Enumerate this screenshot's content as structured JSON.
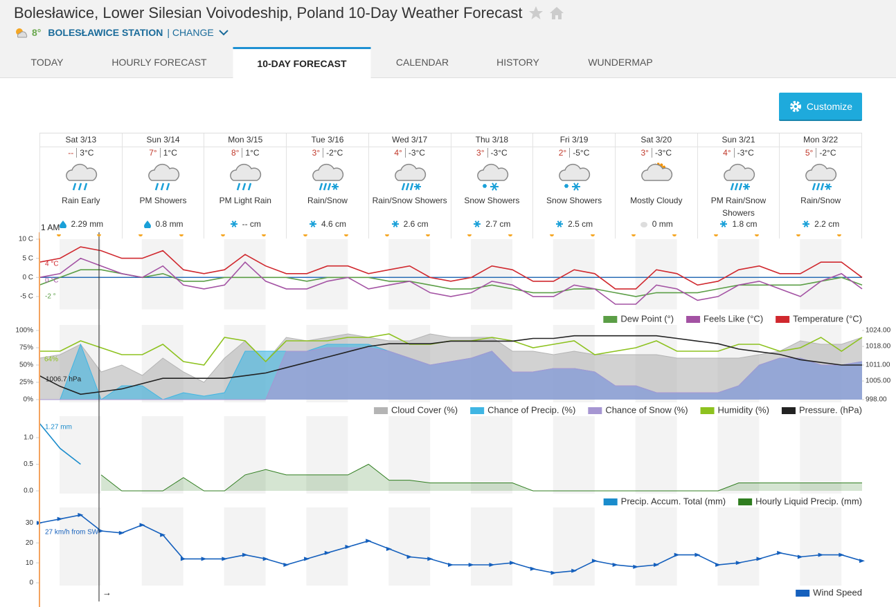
{
  "header": {
    "title": "Bolesławice, Lower Silesian Voivodeship, Poland 10-Day Weather Forecast",
    "temperature": "8°",
    "station": "BOLESŁAWICE STATION",
    "change": "| CHANGE"
  },
  "tabs": [
    "TODAY",
    "HOURLY FORECAST",
    "10-DAY FORECAST",
    "CALENDAR",
    "HISTORY",
    "WUNDERMAP"
  ],
  "active_tab": 2,
  "button": "Customize",
  "days": [
    {
      "date": "Sat 3/13",
      "high": "--",
      "low": "3°C",
      "condition": "Rain Early",
      "precip": "2.29 mm"
    },
    {
      "date": "Sun 3/14",
      "high": "7°",
      "low": "1°C",
      "condition": "PM Showers",
      "precip": "0.8 mm"
    },
    {
      "date": "Mon 3/15",
      "high": "8°",
      "low": "1°C",
      "condition": "PM Light Rain",
      "precip": "-- cm"
    },
    {
      "date": "Tue 3/16",
      "high": "3°",
      "low": "-2°C",
      "condition": "Rain/Snow",
      "precip": "4.6 cm"
    },
    {
      "date": "Wed 3/17",
      "high": "4°",
      "low": "-3°C",
      "condition": "Rain/Snow Showers",
      "precip": "2.6 cm"
    },
    {
      "date": "Thu 3/18",
      "high": "3°",
      "low": "-3°C",
      "condition": "Snow Showers",
      "precip": "2.7 cm"
    },
    {
      "date": "Fri 3/19",
      "high": "2°",
      "low": "-5°C",
      "condition": "Snow Showers",
      "precip": "2.5 cm"
    },
    {
      "date": "Sat 3/20",
      "high": "3°",
      "low": "-3°C",
      "condition": "Mostly Cloudy",
      "precip": "0 mm"
    },
    {
      "date": "Sun 3/21",
      "high": "4°",
      "low": "-3°C",
      "condition": "PM Rain/Snow Showers",
      "precip": "1.8 cm"
    },
    {
      "date": "Mon 3/22",
      "high": "5°",
      "low": "-2°C",
      "condition": "Rain/Snow",
      "precip": "2.2 cm"
    }
  ],
  "time_label": "1 AM",
  "time_arrow": "→",
  "chart_data": [
    {
      "type": "line",
      "ylim": [
        -8,
        10
      ],
      "yticks": [
        {
          "value": 10,
          "label": "10 C"
        },
        {
          "value": 5,
          "label": "5 C"
        },
        {
          "value": 0,
          "label": "0 C"
        },
        {
          "value": -5,
          "label": "-5 C"
        }
      ],
      "series": [
        {
          "name": "Dew Point (°)",
          "color": "#5b9e46",
          "values": [
            -2,
            0,
            2,
            2,
            1,
            0,
            1,
            -1,
            -1,
            0,
            0,
            0,
            0,
            -1,
            0,
            0,
            0,
            -1,
            -1,
            -2,
            -3,
            -3,
            -2,
            -3,
            -4,
            -4,
            -3,
            -3,
            -4,
            -5,
            -4,
            -4,
            -4,
            -3,
            -2,
            -2,
            -2,
            -2,
            -1,
            0,
            -2
          ]
        },
        {
          "name": "Feels Like (°C)",
          "color": "#a352a3",
          "values": [
            0,
            1,
            5,
            3,
            1,
            0,
            3,
            -2,
            -3,
            -2,
            4,
            -1,
            -3,
            -3,
            -1,
            0,
            -3,
            -2,
            -1,
            -4,
            -5,
            -4,
            -1,
            -2,
            -5,
            -5,
            -2,
            -3,
            -7,
            -7,
            -2,
            -3,
            -6,
            -5,
            -2,
            -1,
            -3,
            -5,
            -1,
            1,
            -3
          ]
        },
        {
          "name": "Temperature (°C)",
          "color": "#d0282e",
          "values": [
            4,
            5,
            8,
            7,
            5,
            5,
            7,
            2,
            1,
            2,
            6,
            3,
            1,
            1,
            3,
            3,
            1,
            2,
            3,
            0,
            -1,
            0,
            3,
            2,
            -1,
            -1,
            2,
            1,
            -3,
            -3,
            2,
            1,
            -2,
            -1,
            2,
            3,
            1,
            1,
            4,
            4,
            0
          ]
        }
      ],
      "annotations": [
        "4 °C",
        "0 °C",
        "-2 °"
      ]
    },
    {
      "type": "area",
      "ylim": [
        0,
        100
      ],
      "yticks": [
        {
          "value": 100,
          "label": "100%"
        },
        {
          "value": 75,
          "label": "75%"
        },
        {
          "value": 50,
          "label": "50%"
        },
        {
          "value": 25,
          "label": "25%"
        },
        {
          "value": 0,
          "label": "0%"
        }
      ],
      "y2lim": [
        998,
        1024
      ],
      "y2ticks": [
        {
          "value": 1024,
          "label": "1024.00"
        },
        {
          "value": 1018,
          "label": "1018.00"
        },
        {
          "value": 1011,
          "label": "1011.00"
        },
        {
          "value": 1005,
          "label": "1005.00"
        },
        {
          "value": 998,
          "label": "998.00"
        }
      ],
      "series": [
        {
          "name": "Cloud Cover (%)",
          "color": "#b4b4b4",
          "area": true,
          "values": [
            60,
            65,
            80,
            40,
            50,
            35,
            60,
            40,
            25,
            60,
            85,
            55,
            90,
            85,
            90,
            95,
            90,
            85,
            85,
            95,
            90,
            90,
            90,
            70,
            70,
            65,
            70,
            65,
            65,
            65,
            65,
            60,
            60,
            60,
            60,
            65,
            70,
            85,
            80,
            80,
            90
          ]
        },
        {
          "name": "Chance of Precip. (%)",
          "color": "#3fb5e3",
          "area": true,
          "values": [
            0,
            0,
            80,
            0,
            20,
            20,
            0,
            10,
            5,
            10,
            70,
            70,
            70,
            70,
            80,
            80,
            80,
            70,
            60,
            50,
            55,
            60,
            70,
            40,
            40,
            45,
            45,
            40,
            20,
            20,
            10,
            10,
            10,
            10,
            20,
            50,
            60,
            60,
            50,
            50,
            55
          ]
        },
        {
          "name": "Chance of Snow (%)",
          "color": "#a696d2",
          "area": true,
          "values": [
            0,
            0,
            0,
            0,
            0,
            0,
            0,
            0,
            0,
            0,
            0,
            0,
            70,
            70,
            75,
            75,
            75,
            70,
            60,
            50,
            55,
            60,
            70,
            40,
            40,
            45,
            45,
            40,
            20,
            20,
            10,
            10,
            10,
            10,
            20,
            50,
            60,
            60,
            50,
            50,
            55
          ]
        },
        {
          "name": "Humidity (%)",
          "color": "#8dc21f",
          "values": [
            70,
            70,
            85,
            75,
            65,
            65,
            80,
            55,
            50,
            90,
            85,
            55,
            85,
            85,
            85,
            90,
            90,
            95,
            80,
            80,
            85,
            85,
            90,
            85,
            75,
            80,
            85,
            65,
            70,
            75,
            85,
            70,
            70,
            70,
            80,
            80,
            70,
            75,
            90,
            70,
            90
          ]
        },
        {
          "name": "Pressure. (hPa)",
          "color": "#222222",
          "axis": "y2",
          "values": [
            1007,
            1003,
            1000,
            1001,
            1002,
            1004,
            1006,
            1006,
            1006,
            1006,
            1007,
            1008,
            1010,
            1012,
            1014,
            1016,
            1018,
            1019,
            1019,
            1019,
            1020,
            1020,
            1020,
            1020,
            1021,
            1021,
            1022,
            1022,
            1022,
            1022,
            1022,
            1021,
            1020,
            1019,
            1017,
            1016,
            1015,
            1013,
            1012,
            1011,
            1011
          ]
        }
      ],
      "annotations": [
        "64%",
        "1006.7 hPa"
      ]
    },
    {
      "type": "area",
      "ylim": [
        0,
        1.3
      ],
      "yticks": [
        {
          "value": 1,
          "label": "1.0"
        },
        {
          "value": 0.5,
          "label": "0.5"
        },
        {
          "value": 0,
          "label": "0.0"
        }
      ],
      "series": [
        {
          "name": "Precip. Accum. Total (mm)",
          "color": "#1a8ccc",
          "values": [
            1.27,
            0.8,
            0.5,
            null,
            null,
            null,
            null,
            null,
            null,
            null,
            null,
            null,
            null,
            null,
            null,
            null,
            null,
            null,
            null,
            null,
            null,
            null,
            null,
            null,
            null,
            null,
            null,
            null,
            null,
            null,
            null,
            null,
            null,
            null,
            null,
            null,
            null,
            null,
            null,
            null,
            null
          ]
        },
        {
          "name": "Hourly Liquid Precip. (mm)",
          "color": "#2f7d1f",
          "area": true,
          "values": [
            null,
            null,
            null,
            0.3,
            0,
            0,
            0,
            0.25,
            0,
            0,
            0.3,
            0.4,
            0.3,
            0.3,
            0.3,
            0.3,
            0.5,
            0.2,
            0.2,
            0.15,
            0.15,
            0.15,
            0.15,
            0.15,
            0,
            0,
            0,
            0,
            0,
            0,
            0,
            0,
            0,
            0,
            0.15,
            0.15,
            0.15,
            0.15,
            0.15,
            0.15,
            0.15
          ]
        }
      ],
      "annotations": [
        "1.27 mm"
      ]
    },
    {
      "type": "line",
      "ylim": [
        0,
        35
      ],
      "yticks": [
        30,
        20,
        10,
        0
      ],
      "series": [
        {
          "name": "Wind Speed",
          "color": "#1560bd",
          "markers": true,
          "values": [
            30,
            32,
            34,
            26,
            25,
            29,
            24,
            12,
            12,
            12,
            14,
            12,
            9,
            12,
            15,
            18,
            21,
            17,
            13,
            12,
            9,
            9,
            9,
            10,
            7,
            5,
            6,
            11,
            9,
            8,
            9,
            14,
            14,
            9,
            10,
            12,
            15,
            13,
            14,
            14,
            11
          ]
        }
      ],
      "annotations": [
        "27 km/h from SW"
      ]
    }
  ]
}
